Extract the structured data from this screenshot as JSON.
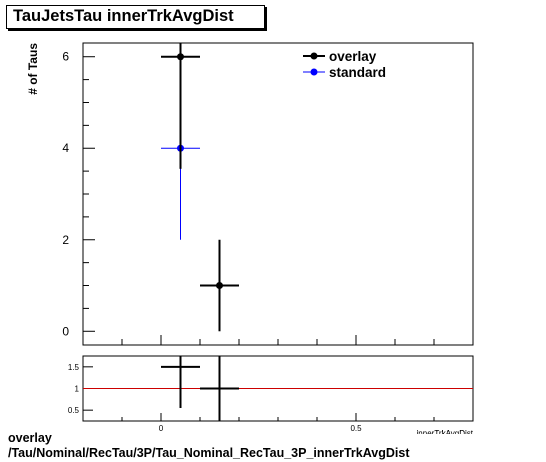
{
  "title": "TauJetsTau innerTrkAvgDist",
  "footer": {
    "line1": "overlay",
    "line2": "/Tau/Nominal/RecTau/3P/Tau_Nominal_RecTau_3P_innerTrkAvgDist"
  },
  "colors": {
    "overlay": "#000000",
    "standard": "#0000ff",
    "ratio_line": "#cc0000"
  },
  "chart_data": [
    {
      "type": "scatter",
      "title": "TauJetsTau innerTrkAvgDist",
      "xlabel": "innerTrkAvgDist",
      "ylabel": "# of Taus",
      "xlim": [
        -0.2,
        0.8
      ],
      "ylim": [
        -0.3,
        6.3
      ],
      "yticks": [
        0,
        2,
        4,
        6
      ],
      "grid": false,
      "legend_position": "top-right",
      "series": [
        {
          "name": "overlay",
          "color": "#000000",
          "points": [
            {
              "x": 0.05,
              "xerr": 0.05,
              "y": 6,
              "yerr": 2.45
            },
            {
              "x": 0.15,
              "xerr": 0.05,
              "y": 1,
              "yerr": 1
            }
          ]
        },
        {
          "name": "standard",
          "color": "#0000ff",
          "points": [
            {
              "x": 0.05,
              "xerr": 0.05,
              "y": 4,
              "yerr": 2
            }
          ]
        }
      ]
    },
    {
      "type": "scatter",
      "xlabel": "innerTrkAvgDist",
      "xlim": [
        -0.2,
        0.8
      ],
      "ylim": [
        0.25,
        1.75
      ],
      "yticks": [
        0.5,
        1,
        1.5
      ],
      "xticks": [
        0,
        0.5
      ],
      "reference_line": 1,
      "series": [
        {
          "name": "ratio",
          "points": [
            {
              "x": 0.05,
              "xerr": 0.05,
              "y": 1.5,
              "yerr": 0.95
            },
            {
              "x": 0.15,
              "xerr": 0.05,
              "y": 1,
              "yerr": 0.9
            }
          ]
        }
      ]
    }
  ]
}
